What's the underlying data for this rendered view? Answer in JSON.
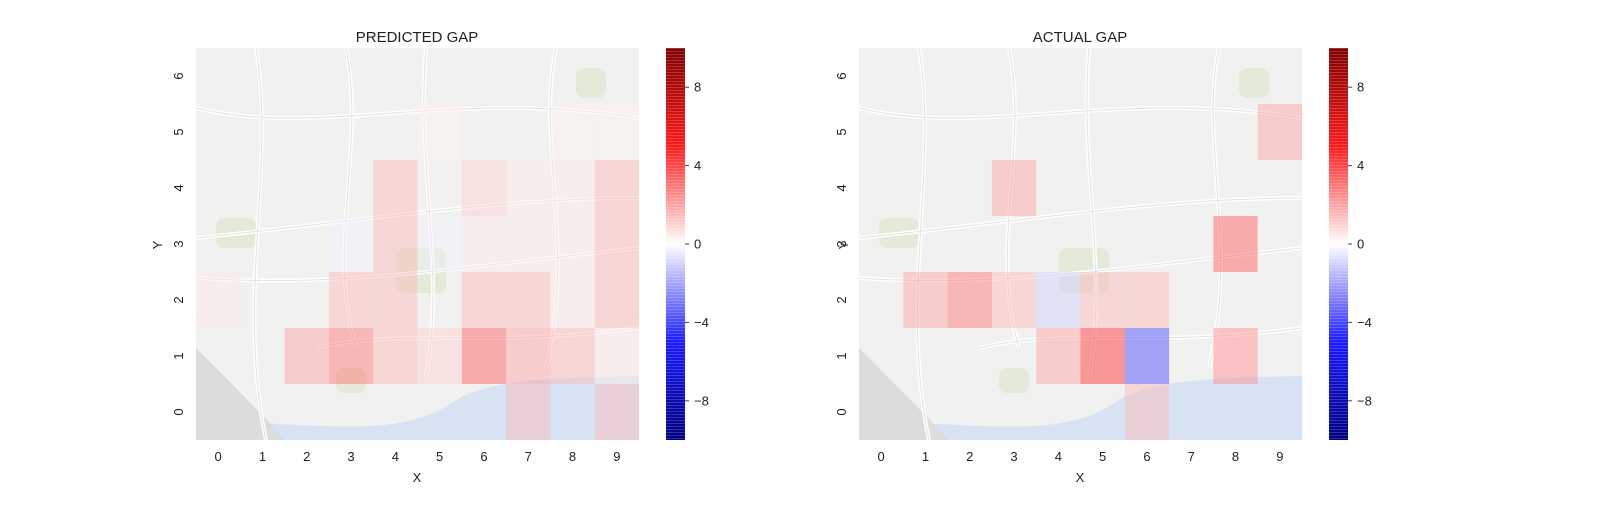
{
  "chart_data": [
    {
      "type": "heatmap",
      "title": "PREDICTED GAP",
      "xlabel": "X",
      "ylabel": "Y",
      "x_ticks": [
        "0",
        "1",
        "2",
        "3",
        "4",
        "5",
        "6",
        "7",
        "8",
        "9"
      ],
      "y_ticks": [
        "0",
        "1",
        "2",
        "3",
        "4",
        "5",
        "6"
      ],
      "colorbar": {
        "range": [
          -10,
          10
        ],
        "ticks": [
          8,
          4,
          0,
          -4,
          -8
        ],
        "tick_labels": [
          "8",
          "4",
          "0",
          "−4",
          "−8"
        ],
        "colormap": "seismic"
      },
      "background": "street map of Porto",
      "cells": [
        {
          "x": 0,
          "y": 0,
          "v": 0
        },
        {
          "x": 1,
          "y": 0,
          "v": 0
        },
        {
          "x": 2,
          "y": 0,
          "v": 0
        },
        {
          "x": 3,
          "y": 0,
          "v": 0
        },
        {
          "x": 4,
          "y": 0,
          "v": 0
        },
        {
          "x": 5,
          "y": 0,
          "v": 0
        },
        {
          "x": 6,
          "y": 0,
          "v": 0
        },
        {
          "x": 7,
          "y": 0,
          "v": 1.5
        },
        {
          "x": 8,
          "y": 0,
          "v": 0
        },
        {
          "x": 9,
          "y": 0,
          "v": 1.5
        },
        {
          "x": 0,
          "y": 1,
          "v": 0
        },
        {
          "x": 1,
          "y": 1,
          "v": 0
        },
        {
          "x": 2,
          "y": 1,
          "v": 2
        },
        {
          "x": 3,
          "y": 1,
          "v": 3
        },
        {
          "x": 4,
          "y": 1,
          "v": 1.5
        },
        {
          "x": 5,
          "y": 1,
          "v": 1
        },
        {
          "x": 6,
          "y": 1,
          "v": 3.5
        },
        {
          "x": 7,
          "y": 1,
          "v": 2
        },
        {
          "x": 8,
          "y": 1,
          "v": 1.5
        },
        {
          "x": 9,
          "y": 1,
          "v": 0.5
        },
        {
          "x": 0,
          "y": 2,
          "v": 0.5
        },
        {
          "x": 1,
          "y": 2,
          "v": 0
        },
        {
          "x": 2,
          "y": 2,
          "v": 0
        },
        {
          "x": 3,
          "y": 2,
          "v": 1.5
        },
        {
          "x": 4,
          "y": 2,
          "v": 1.5
        },
        {
          "x": 5,
          "y": 2,
          "v": 0
        },
        {
          "x": 6,
          "y": 2,
          "v": 1.5
        },
        {
          "x": 7,
          "y": 2,
          "v": 1.5
        },
        {
          "x": 8,
          "y": 2,
          "v": 0.5
        },
        {
          "x": 9,
          "y": 2,
          "v": 1.5
        },
        {
          "x": 0,
          "y": 3,
          "v": 0
        },
        {
          "x": 1,
          "y": 3,
          "v": 0
        },
        {
          "x": 2,
          "y": 3,
          "v": 0
        },
        {
          "x": 3,
          "y": 3,
          "v": -0.3
        },
        {
          "x": 4,
          "y": 3,
          "v": 1.5
        },
        {
          "x": 5,
          "y": 3,
          "v": -0.3
        },
        {
          "x": 6,
          "y": 3,
          "v": 0.5
        },
        {
          "x": 7,
          "y": 3,
          "v": 0.5
        },
        {
          "x": 8,
          "y": 3,
          "v": 0.5
        },
        {
          "x": 9,
          "y": 3,
          "v": 1.5
        },
        {
          "x": 0,
          "y": 4,
          "v": 0
        },
        {
          "x": 1,
          "y": 4,
          "v": 0
        },
        {
          "x": 2,
          "y": 4,
          "v": 0
        },
        {
          "x": 3,
          "y": 4,
          "v": 0
        },
        {
          "x": 4,
          "y": 4,
          "v": 1.5
        },
        {
          "x": 5,
          "y": 4,
          "v": 0
        },
        {
          "x": 6,
          "y": 4,
          "v": 1
        },
        {
          "x": 7,
          "y": 4,
          "v": 0.5
        },
        {
          "x": 8,
          "y": 4,
          "v": 0.5
        },
        {
          "x": 9,
          "y": 4,
          "v": 1.5
        },
        {
          "x": 0,
          "y": 5,
          "v": 0
        },
        {
          "x": 1,
          "y": 5,
          "v": 0
        },
        {
          "x": 2,
          "y": 5,
          "v": 0
        },
        {
          "x": 3,
          "y": 5,
          "v": 0
        },
        {
          "x": 4,
          "y": 5,
          "v": 0
        },
        {
          "x": 5,
          "y": 5,
          "v": 0.3
        },
        {
          "x": 6,
          "y": 5,
          "v": 0
        },
        {
          "x": 7,
          "y": 5,
          "v": 0
        },
        {
          "x": 8,
          "y": 5,
          "v": 0.3
        },
        {
          "x": 9,
          "y": 5,
          "v": 0.3
        },
        {
          "x": 0,
          "y": 6,
          "v": 0
        },
        {
          "x": 1,
          "y": 6,
          "v": 0
        },
        {
          "x": 2,
          "y": 6,
          "v": 0
        },
        {
          "x": 3,
          "y": 6,
          "v": 0
        },
        {
          "x": 4,
          "y": 6,
          "v": 0
        },
        {
          "x": 5,
          "y": 6,
          "v": 0
        },
        {
          "x": 6,
          "y": 6,
          "v": 0
        },
        {
          "x": 7,
          "y": 6,
          "v": 0
        },
        {
          "x": 8,
          "y": 6,
          "v": 0
        },
        {
          "x": 9,
          "y": 6,
          "v": 0
        }
      ]
    },
    {
      "type": "heatmap",
      "title": "ACTUAL GAP",
      "xlabel": "X",
      "ylabel": "Y",
      "x_ticks": [
        "0",
        "1",
        "2",
        "3",
        "4",
        "5",
        "6",
        "7",
        "8",
        "9"
      ],
      "y_ticks": [
        "0",
        "1",
        "2",
        "3",
        "4",
        "5",
        "6"
      ],
      "colorbar": {
        "range": [
          -10,
          10
        ],
        "ticks": [
          8,
          4,
          0,
          -4,
          -8
        ],
        "tick_labels": [
          "8",
          "4",
          "0",
          "−4",
          "−8"
        ],
        "colormap": "seismic"
      },
      "background": "street map of Porto",
      "cells": [
        {
          "x": 0,
          "y": 0,
          "v": 0
        },
        {
          "x": 1,
          "y": 0,
          "v": 0
        },
        {
          "x": 2,
          "y": 0,
          "v": 0
        },
        {
          "x": 3,
          "y": 0,
          "v": 0
        },
        {
          "x": 4,
          "y": 0,
          "v": 0
        },
        {
          "x": 5,
          "y": 0,
          "v": 0
        },
        {
          "x": 6,
          "y": 0,
          "v": 1.5
        },
        {
          "x": 7,
          "y": 0,
          "v": 0
        },
        {
          "x": 8,
          "y": 0,
          "v": 0
        },
        {
          "x": 9,
          "y": 0,
          "v": 0
        },
        {
          "x": 0,
          "y": 1,
          "v": 0
        },
        {
          "x": 1,
          "y": 1,
          "v": 0
        },
        {
          "x": 2,
          "y": 1,
          "v": 0
        },
        {
          "x": 3,
          "y": 1,
          "v": 0
        },
        {
          "x": 4,
          "y": 1,
          "v": 2
        },
        {
          "x": 5,
          "y": 1,
          "v": 4.5
        },
        {
          "x": 6,
          "y": 1,
          "v": -4
        },
        {
          "x": 7,
          "y": 1,
          "v": 0
        },
        {
          "x": 8,
          "y": 1,
          "v": 2.5
        },
        {
          "x": 9,
          "y": 1,
          "v": 0
        },
        {
          "x": 0,
          "y": 2,
          "v": 0
        },
        {
          "x": 1,
          "y": 2,
          "v": 2
        },
        {
          "x": 2,
          "y": 2,
          "v": 3
        },
        {
          "x": 3,
          "y": 2,
          "v": 1.5
        },
        {
          "x": 4,
          "y": 2,
          "v": -1
        },
        {
          "x": 5,
          "y": 2,
          "v": 1.5
        },
        {
          "x": 6,
          "y": 2,
          "v": 1.5
        },
        {
          "x": 7,
          "y": 2,
          "v": 0
        },
        {
          "x": 8,
          "y": 2,
          "v": 0
        },
        {
          "x": 9,
          "y": 2,
          "v": 0
        },
        {
          "x": 0,
          "y": 3,
          "v": 0
        },
        {
          "x": 1,
          "y": 3,
          "v": 0
        },
        {
          "x": 2,
          "y": 3,
          "v": 0
        },
        {
          "x": 3,
          "y": 3,
          "v": 0
        },
        {
          "x": 4,
          "y": 3,
          "v": 0
        },
        {
          "x": 5,
          "y": 3,
          "v": 0
        },
        {
          "x": 6,
          "y": 3,
          "v": 0
        },
        {
          "x": 7,
          "y": 3,
          "v": 0
        },
        {
          "x": 8,
          "y": 3,
          "v": 3.5
        },
        {
          "x": 9,
          "y": 3,
          "v": 0
        },
        {
          "x": 0,
          "y": 4,
          "v": 0
        },
        {
          "x": 1,
          "y": 4,
          "v": 0
        },
        {
          "x": 2,
          "y": 4,
          "v": 0
        },
        {
          "x": 3,
          "y": 4,
          "v": 2
        },
        {
          "x": 4,
          "y": 4,
          "v": 0
        },
        {
          "x": 5,
          "y": 4,
          "v": 0
        },
        {
          "x": 6,
          "y": 4,
          "v": 0
        },
        {
          "x": 7,
          "y": 4,
          "v": 0
        },
        {
          "x": 8,
          "y": 4,
          "v": 0
        },
        {
          "x": 9,
          "y": 4,
          "v": 0
        },
        {
          "x": 0,
          "y": 5,
          "v": 0
        },
        {
          "x": 1,
          "y": 5,
          "v": 0
        },
        {
          "x": 2,
          "y": 5,
          "v": 0
        },
        {
          "x": 3,
          "y": 5,
          "v": 0
        },
        {
          "x": 4,
          "y": 5,
          "v": 0
        },
        {
          "x": 5,
          "y": 5,
          "v": 0
        },
        {
          "x": 6,
          "y": 5,
          "v": 0
        },
        {
          "x": 7,
          "y": 5,
          "v": 0
        },
        {
          "x": 8,
          "y": 5,
          "v": 0
        },
        {
          "x": 9,
          "y": 5,
          "v": 2
        },
        {
          "x": 0,
          "y": 6,
          "v": 0
        },
        {
          "x": 1,
          "y": 6,
          "v": 0
        },
        {
          "x": 2,
          "y": 6,
          "v": 0
        },
        {
          "x": 3,
          "y": 6,
          "v": 0
        },
        {
          "x": 4,
          "y": 6,
          "v": 0
        },
        {
          "x": 5,
          "y": 6,
          "v": 0
        },
        {
          "x": 6,
          "y": 6,
          "v": 0
        },
        {
          "x": 7,
          "y": 6,
          "v": 0
        },
        {
          "x": 8,
          "y": 6,
          "v": 0
        },
        {
          "x": 9,
          "y": 6,
          "v": 0
        }
      ]
    }
  ]
}
